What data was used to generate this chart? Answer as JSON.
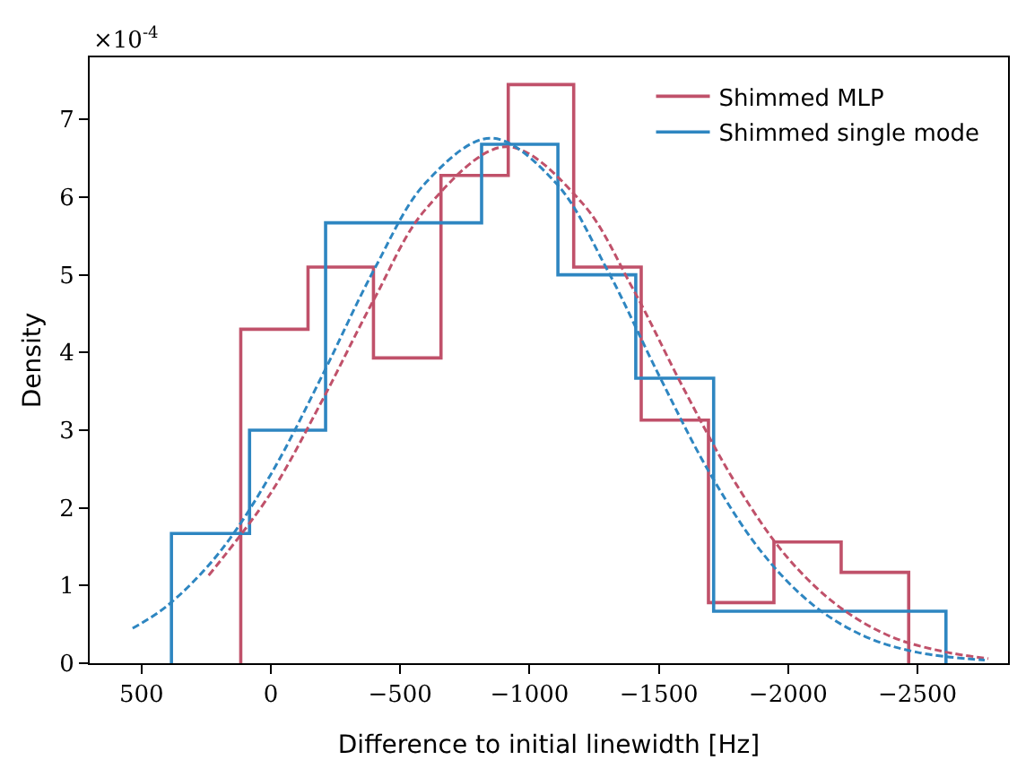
{
  "chart_data": {
    "type": "histogram",
    "xlabel": "Difference to initial linewidth [Hz]",
    "ylabel": "Density",
    "annotations": [
      "×10$^{-4}$"
    ],
    "xlim": [
      700,
      -2850
    ],
    "ylim": [
      0,
      7.8
    ],
    "xticks": [
      {
        "value": 500,
        "label": "500"
      },
      {
        "value": 0,
        "label": "0"
      },
      {
        "value": -500,
        "label": "−500"
      },
      {
        "value": -1000,
        "label": "−1000"
      },
      {
        "value": -1500,
        "label": "−1500"
      },
      {
        "value": -2000,
        "label": "−2000"
      },
      {
        "value": -2500,
        "label": "−2500"
      }
    ],
    "yticks": [
      0,
      1,
      2,
      3,
      4,
      5,
      6,
      7
    ],
    "legend": "top right",
    "series": [
      {
        "name": "Shimmed MLP",
        "color": "#c0516a",
        "bins": [
          116,
          -144,
          -397,
          -658,
          -918,
          -1171,
          -1432,
          -1692,
          -1945,
          -2205,
          -2466
        ],
        "values": [
          4.3,
          5.1,
          3.93,
          6.28,
          7.45,
          5.1,
          3.13,
          0.78,
          1.56,
          1.17
        ]
      },
      {
        "name": "Shimmed single mode",
        "color": "#2e86c1",
        "bins": [
          384,
          82,
          -212,
          -514,
          -815,
          -1110,
          -1411,
          -1712,
          -2014,
          -2308,
          -2610
        ],
        "values": [
          1.67,
          3.0,
          5.67,
          5.67,
          6.68,
          5.0,
          3.67,
          0.67,
          0.67,
          0.67
        ]
      },
      {
        "color": "#c0516a",
        "type": "line",
        "line_style": "dashed",
        "x": [
          240,
          0,
          -200,
          -400,
          -600,
          -910,
          -1200,
          -1400,
          -1600,
          -1800,
          -2000,
          -2200,
          -2400,
          -2600,
          -2774
        ],
        "values": [
          1.13,
          2.19,
          3.39,
          4.69,
          5.85,
          6.65,
          5.94,
          4.82,
          3.51,
          2.3,
          1.35,
          0.72,
          0.34,
          0.15,
          0.06
        ]
      },
      {
        "color": "#2e86c1",
        "type": "line",
        "line_style": "dashed",
        "x": [
          534,
          400,
          200,
          0,
          -200,
          -400,
          -600,
          -850,
          -1100,
          -1300,
          -1500,
          -1700,
          -1900,
          -2100,
          -2300,
          -2500,
          -2760
        ],
        "values": [
          0.45,
          0.74,
          1.42,
          2.43,
          3.71,
          5.07,
          6.19,
          6.76,
          6.19,
          5.07,
          3.71,
          2.43,
          1.42,
          0.74,
          0.34,
          0.14,
          0.04
        ]
      }
    ]
  }
}
